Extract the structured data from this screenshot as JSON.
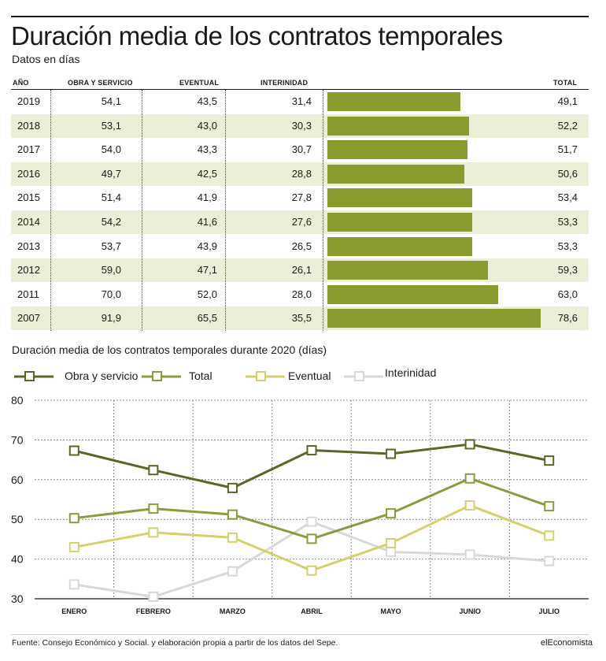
{
  "title": "Duración media de los contratos temporales",
  "subtitle": "Datos en días",
  "table": {
    "headers": {
      "year": "AÑO",
      "obra": "OBRA Y SERVICIO",
      "eventual": "EVENTUAL",
      "interinidad": "INTERINIDAD",
      "total": "TOTAL"
    },
    "rows": [
      {
        "year": "2019",
        "obra": "54,1",
        "eventual": "43,5",
        "interinidad": "31,4",
        "total": "49,1",
        "total_value": 49.1
      },
      {
        "year": "2018",
        "obra": "53,1",
        "eventual": "43,0",
        "interinidad": "30,3",
        "total": "52,2",
        "total_value": 52.2
      },
      {
        "year": "2017",
        "obra": "54,0",
        "eventual": "43,3",
        "interinidad": "30,7",
        "total": "51,7",
        "total_value": 51.7
      },
      {
        "year": "2016",
        "obra": "49,7",
        "eventual": "42,5",
        "interinidad": "28,8",
        "total": "50,6",
        "total_value": 50.6
      },
      {
        "year": "2015",
        "obra": "51,4",
        "eventual": "41,9",
        "interinidad": "27,8",
        "total": "53,4",
        "total_value": 53.4
      },
      {
        "year": "2014",
        "obra": "54,2",
        "eventual": "41,6",
        "interinidad": "27,6",
        "total": "53,3",
        "total_value": 53.3
      },
      {
        "year": "2013",
        "obra": "53,7",
        "eventual": "43,9",
        "interinidad": "26,5",
        "total": "53,3",
        "total_value": 53.3
      },
      {
        "year": "2012",
        "obra": "59,0",
        "eventual": "47,1",
        "interinidad": "26,1",
        "total": "59,3",
        "total_value": 59.3
      },
      {
        "year": "2011",
        "obra": "70,0",
        "eventual": "52,0",
        "interinidad": "28,0",
        "total": "63,0",
        "total_value": 63.0
      },
      {
        "year": "2007",
        "obra": "91,9",
        "eventual": "65,5",
        "interinidad": "35,5",
        "total": "78,6",
        "total_value": 78.6
      }
    ]
  },
  "chart_data": {
    "type": "line",
    "title": "Duración media de los contratos temporales durante 2020 (días)",
    "categories": [
      "ENERO",
      "FEBRERO",
      "MARZO",
      "ABRIL",
      "MAYO",
      "JUNIO",
      "JULIO"
    ],
    "ylim": [
      30,
      80
    ],
    "yticks": [
      "80",
      "70",
      "60",
      "50",
      "40",
      "30"
    ],
    "grid": true,
    "legend_position": "top-left",
    "series": [
      {
        "name": "Obra y servicio",
        "color": "#5b6524",
        "values": [
          67.3,
          62.4,
          57.9,
          67.4,
          66.5,
          68.9,
          64.8
        ]
      },
      {
        "name": "Total",
        "color": "#8c9a3c",
        "values": [
          50.3,
          52.7,
          51.2,
          45.1,
          51.5,
          60.3,
          53.3
        ]
      },
      {
        "name": "Eventual",
        "color": "#d4d06c",
        "values": [
          43.0,
          46.7,
          45.4,
          37.1,
          44.0,
          53.5,
          45.9
        ]
      },
      {
        "name": "Interinidad",
        "color": "#d9d9d3",
        "values": [
          33.6,
          30.5,
          36.9,
          49.4,
          41.8,
          41.1,
          39.5
        ]
      }
    ],
    "bar_color": "#8a9a2e",
    "row_stripe_color": "#eeeed8"
  },
  "footer": {
    "source": "Fuente: Consejo Económico y Social. y elaboración propia a partir de los datos del Sepe.",
    "brand": "elEconomista"
  }
}
